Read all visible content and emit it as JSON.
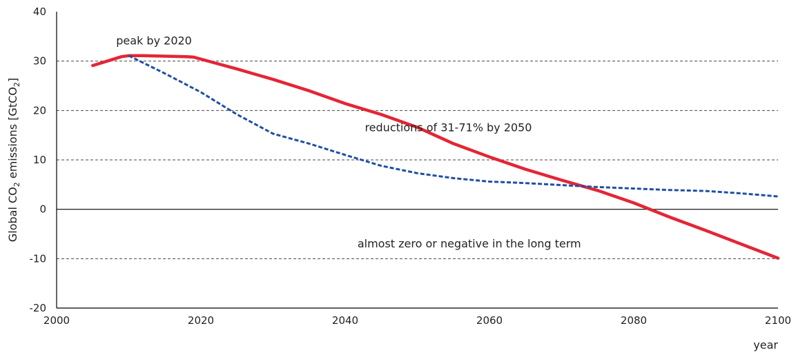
{
  "chart_data": {
    "type": "line",
    "title": "",
    "xlabel": "year",
    "ylabel_parts": {
      "prefix": "Global CO",
      "sub1": "2",
      "middle": " emissions [GtCO",
      "sub2": "2",
      "suffix": "]"
    },
    "xlim": [
      2000,
      2100
    ],
    "ylim": [
      -20,
      40
    ],
    "x_ticks": [
      2000,
      2020,
      2040,
      2060,
      2080,
      2100
    ],
    "y_ticks": [
      -20,
      -10,
      0,
      10,
      20,
      30,
      40
    ],
    "dashed_gridlines_y": [
      -10,
      10,
      20,
      30
    ],
    "zero_line": true,
    "series": [
      {
        "style": "solid",
        "color": "#e32636",
        "points": [
          [
            2005,
            29.1
          ],
          [
            2007,
            30.0
          ],
          [
            2009,
            30.9
          ],
          [
            2010,
            31.1
          ],
          [
            2012,
            31.1
          ],
          [
            2015,
            31.0
          ],
          [
            2018,
            30.9
          ],
          [
            2019,
            30.8
          ],
          [
            2022,
            29.6
          ],
          [
            2025,
            28.4
          ],
          [
            2030,
            26.3
          ],
          [
            2035,
            24.0
          ],
          [
            2040,
            21.4
          ],
          [
            2045,
            19.2
          ],
          [
            2050,
            16.6
          ],
          [
            2055,
            13.3
          ],
          [
            2060,
            10.6
          ],
          [
            2065,
            8.1
          ],
          [
            2070,
            5.9
          ],
          [
            2075,
            3.8
          ],
          [
            2080,
            1.3
          ],
          [
            2085,
            -1.6
          ],
          [
            2090,
            -4.3
          ],
          [
            2095,
            -7.1
          ],
          [
            2100,
            -9.9
          ]
        ]
      },
      {
        "style": "dashed",
        "color": "#1f4ea3",
        "points": [
          [
            2010,
            31.1
          ],
          [
            2015,
            27.5
          ],
          [
            2020,
            23.7
          ],
          [
            2025,
            19.2
          ],
          [
            2030,
            15.3
          ],
          [
            2035,
            13.3
          ],
          [
            2040,
            11.0
          ],
          [
            2045,
            8.8
          ],
          [
            2050,
            7.3
          ],
          [
            2055,
            6.3
          ],
          [
            2060,
            5.6
          ],
          [
            2065,
            5.3
          ],
          [
            2070,
            4.9
          ],
          [
            2075,
            4.5
          ],
          [
            2080,
            4.2
          ],
          [
            2085,
            3.9
          ],
          [
            2090,
            3.7
          ],
          [
            2095,
            3.2
          ],
          [
            2100,
            2.6
          ]
        ]
      }
    ],
    "annotations": [
      {
        "text": "peak by 2020",
        "x": 2013.5,
        "y": 34.2
      },
      {
        "text": "reductions of 31-71% by 2050",
        "x": 2054.3,
        "y": 16.6
      },
      {
        "text": "almost zero or negative in the long term",
        "x": 2057.2,
        "y": -6.9
      }
    ]
  }
}
